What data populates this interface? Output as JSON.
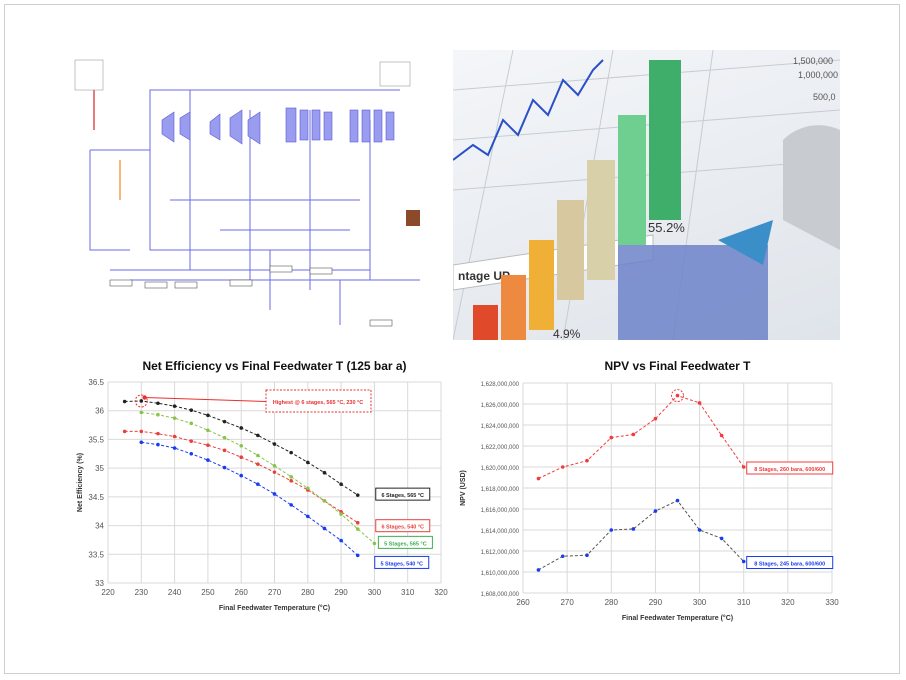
{
  "photo": {
    "percent_label": "55.2%",
    "banner_text": "ntage UP",
    "bottom_label": "4.9%",
    "axis_labels": [
      "1,500,000",
      "1,000,000",
      "500,0"
    ]
  },
  "chart_data": [
    {
      "type": "line",
      "title": "Net Efficiency vs Final Feedwater T (125 bar a)",
      "xlabel": "Final Feedwater Temperature (°C)",
      "ylabel": "Net Efficiency (%)",
      "xlim": [
        220,
        320
      ],
      "ylim": [
        33,
        36.5
      ],
      "xticks": [
        220,
        230,
        240,
        250,
        260,
        270,
        280,
        290,
        300,
        310,
        320
      ],
      "yticks": [
        33,
        33.5,
        34,
        34.5,
        35,
        35.5,
        36,
        36.5
      ],
      "grid": true,
      "series": [
        {
          "name": "6 Stages, 565 °C",
          "color": "#222222",
          "x": [
            225,
            230,
            235,
            240,
            245,
            250,
            255,
            260,
            265,
            270,
            275,
            280,
            285,
            290,
            295
          ],
          "y": [
            36.16,
            36.17,
            36.13,
            36.08,
            36.01,
            35.92,
            35.81,
            35.7,
            35.57,
            35.42,
            35.27,
            35.1,
            34.92,
            34.72,
            34.53
          ]
        },
        {
          "name": "6 Stages, 540 °C",
          "color": "#e8413c",
          "x": [
            225,
            230,
            235,
            240,
            245,
            250,
            255,
            260,
            265,
            270,
            275,
            280,
            285,
            290,
            295
          ],
          "y": [
            35.64,
            35.64,
            35.6,
            35.55,
            35.47,
            35.4,
            35.31,
            35.19,
            35.07,
            34.93,
            34.78,
            34.62,
            34.43,
            34.24,
            34.05
          ]
        },
        {
          "name": "5 Stages, 565 °C",
          "color": "#8bc34a",
          "x": [
            230,
            235,
            240,
            245,
            250,
            255,
            260,
            265,
            270,
            275,
            280,
            285,
            290,
            295,
            300
          ],
          "y": [
            35.97,
            35.93,
            35.87,
            35.78,
            35.66,
            35.53,
            35.39,
            35.22,
            35.04,
            34.85,
            34.65,
            34.43,
            34.2,
            33.94,
            33.69
          ]
        },
        {
          "name": "5 Stages, 540 °C",
          "color": "#1a3cf0",
          "x": [
            230,
            235,
            240,
            245,
            250,
            255,
            260,
            265,
            270,
            275,
            280,
            285,
            290,
            295
          ],
          "y": [
            35.45,
            35.41,
            35.35,
            35.25,
            35.14,
            35.01,
            34.87,
            34.72,
            34.55,
            34.36,
            34.16,
            33.95,
            33.74,
            33.48
          ]
        }
      ],
      "annotation": {
        "text": "Highest @ 6 stages, 565 °C, 230 °C",
        "x": 231,
        "y": 36.23
      }
    },
    {
      "type": "line",
      "title": "NPV vs Final Feedwater T",
      "xlabel": "Final Feedwater Temperature (°C)",
      "ylabel": "NPV (USD)",
      "xlim": [
        260,
        330
      ],
      "ylim": [
        1608000000,
        1628000000
      ],
      "xticks": [
        260,
        270,
        280,
        290,
        300,
        310,
        320,
        330
      ],
      "yticks": [
        "1,608,000,000",
        "1,610,000,000",
        "1,612,000,000",
        "1,614,000,000",
        "1,616,000,000",
        "1,618,000,000",
        "1,620,000,000",
        "1,622,000,000",
        "1,624,000,000",
        "1,626,000,000",
        "1,628,000,000"
      ],
      "grid": true,
      "series": [
        {
          "name": "8 Stages, 260 bara, 600/600",
          "color": "#f03c3c",
          "x": [
            263.5,
            269,
            274.5,
            280,
            285,
            290,
            295,
            300,
            305,
            310
          ],
          "y": [
            1618900000,
            1620000000,
            1620600000,
            1622800000,
            1623100000,
            1624600000,
            1626800000,
            1626100000,
            1623000000,
            1620000000
          ]
        },
        {
          "name": "8 Stages, 245 bara, 600/600",
          "color": "#1a3cf0",
          "line_color": "#555555",
          "x": [
            263.5,
            269,
            274.5,
            280,
            285,
            290,
            295,
            300,
            305,
            310
          ],
          "y": [
            1610200000,
            1611500000,
            1611600000,
            1614000000,
            1614100000,
            1615800000,
            1616800000,
            1614000000,
            1613200000,
            1611000000
          ]
        }
      ],
      "annotation": {
        "x": 295,
        "y": 1626800000
      }
    }
  ]
}
